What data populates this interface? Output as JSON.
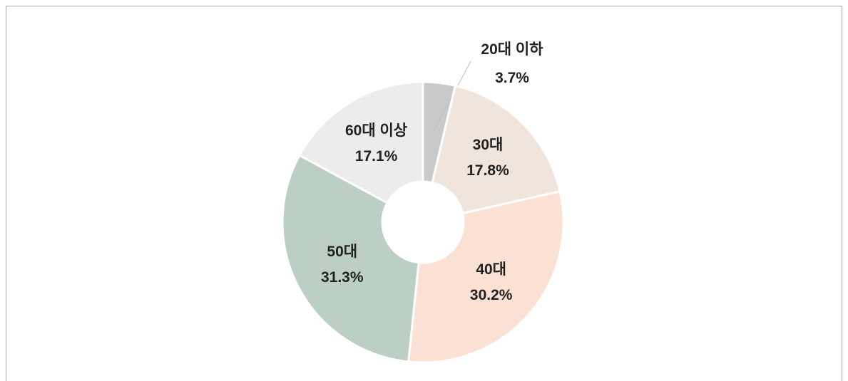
{
  "chart_data": {
    "type": "donut",
    "categories": [
      "20대 이하",
      "30대",
      "40대",
      "50대",
      "60대 이상"
    ],
    "values": [
      3.7,
      17.8,
      30.2,
      31.3,
      17.1
    ],
    "value_labels": [
      "3.7%",
      "17.8%",
      "30.2%",
      "31.3%",
      "17.1%"
    ],
    "colors": [
      "#c9c9c9",
      "#efe5dd",
      "#fbe1d3",
      "#bccfc5",
      "#ececec"
    ]
  }
}
